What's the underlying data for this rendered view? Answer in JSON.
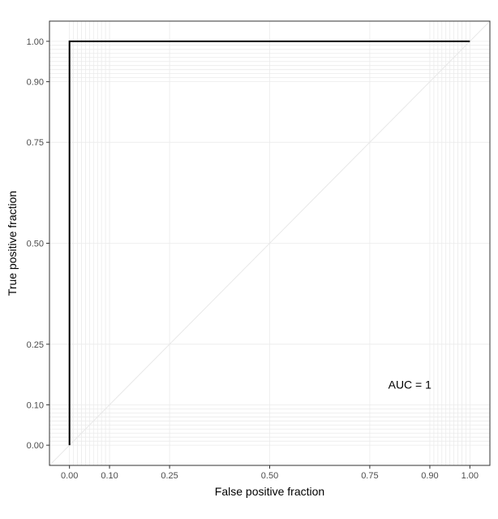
{
  "chart_data": {
    "type": "line",
    "title": "",
    "xlabel": "False positive fraction",
    "ylabel": "True positive fraction",
    "xlim": [
      -0.05,
      1.05
    ],
    "ylim": [
      -0.05,
      1.05
    ],
    "x_ticks": [
      0.0,
      0.1,
      0.25,
      0.5,
      0.75,
      0.9,
      1.0
    ],
    "x_tick_labels": [
      "0.00",
      "0.10",
      "0.25",
      "0.50",
      "0.75",
      "0.90",
      "1.00"
    ],
    "y_ticks": [
      0.0,
      0.1,
      0.25,
      0.5,
      0.75,
      0.9,
      1.0
    ],
    "y_tick_labels": [
      "0.00",
      "0.10",
      "0.25",
      "0.50",
      "0.75",
      "0.90",
      "1.00"
    ],
    "minor_gridlines": [
      0.01,
      0.02,
      0.03,
      0.04,
      0.05,
      0.06,
      0.07,
      0.08,
      0.09,
      0.91,
      0.92,
      0.93,
      0.94,
      0.95,
      0.96,
      0.97,
      0.98,
      0.99
    ],
    "grid": true,
    "reference_diagonal": {
      "x": [
        0,
        1
      ],
      "y": [
        0,
        1
      ]
    },
    "series": [
      {
        "x": [
          0.0,
          0.0,
          1.0
        ],
        "y": [
          0.0,
          1.0,
          1.0
        ]
      }
    ],
    "annotations": [
      {
        "text": "AUC = 1",
        "x": 0.85,
        "y": 0.15
      }
    ]
  },
  "colors": {
    "curve": "#000000",
    "grid": "#ebebeb",
    "diagonal": "#e8e8e8",
    "panel_border": "#333333",
    "tick_label": "#4d4d4d"
  }
}
